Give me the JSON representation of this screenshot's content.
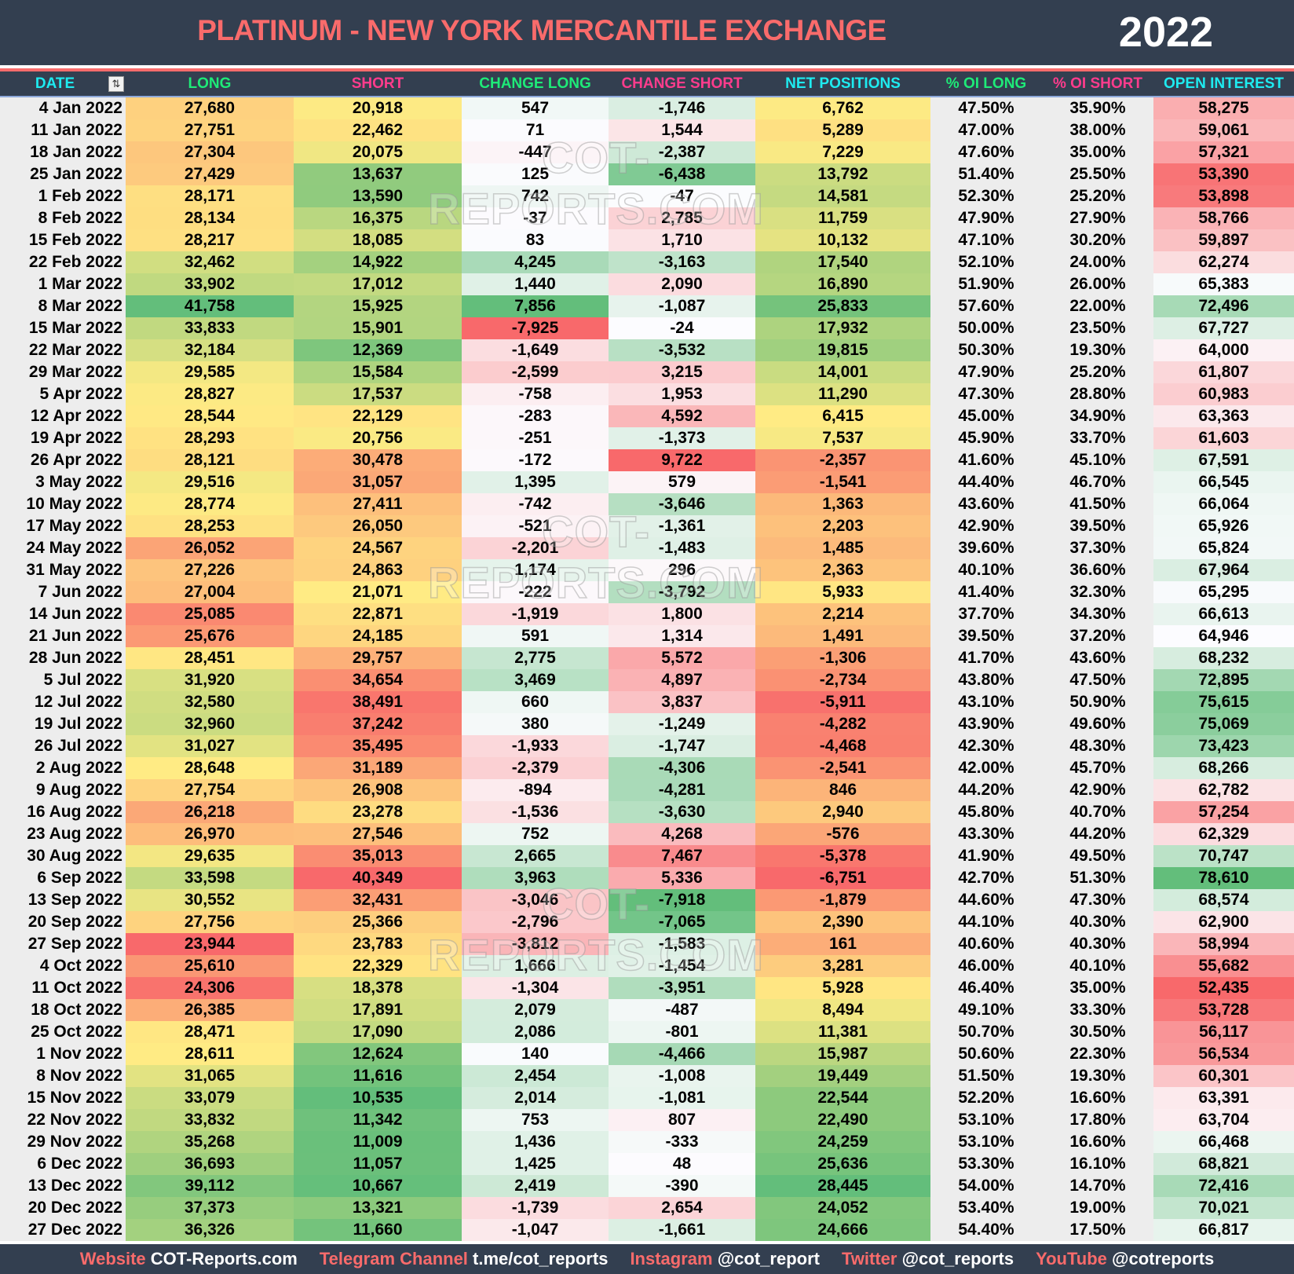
{
  "header": {
    "title": "PLATINUM - NEW YORK MERCANTILE EXCHANGE",
    "year": "2022"
  },
  "columns": [
    {
      "label": "DATE",
      "color": "#1EEBF0"
    },
    {
      "label": "LONG",
      "color": "#1EEB78"
    },
    {
      "label": "SHORT",
      "color": "#FF3C8C"
    },
    {
      "label": "CHANGE LONG",
      "color": "#1EEB78"
    },
    {
      "label": "CHANGE SHORT",
      "color": "#FF3C8C"
    },
    {
      "label": "NET POSITIONS",
      "color": "#1EEBF0"
    },
    {
      "label": "% OI LONG",
      "color": "#1EEB78"
    },
    {
      "label": "% OI SHORT",
      "color": "#FF3C8C"
    },
    {
      "label": "OPEN INTEREST",
      "color": "#1EEBF0"
    }
  ],
  "filter_icon": "filter-sort-icon",
  "scale_colors": {
    "red": "#F8696B",
    "yellow": "#FFEB84",
    "green": "#63BE7B",
    "white": "#FCFCFF"
  },
  "watermark": "COT-REPORTS.COM",
  "rows": [
    [
      "4 Jan 2022",
      "27,680",
      "20,918",
      "547",
      "-1,746",
      "6,762",
      "47.50%",
      "35.90%",
      "58,275"
    ],
    [
      "11 Jan 2022",
      "27,751",
      "22,462",
      "71",
      "1,544",
      "5,289",
      "47.00%",
      "38.00%",
      "59,061"
    ],
    [
      "18 Jan 2022",
      "27,304",
      "20,075",
      "-447",
      "-2,387",
      "7,229",
      "47.60%",
      "35.00%",
      "57,321"
    ],
    [
      "25 Jan 2022",
      "27,429",
      "13,637",
      "125",
      "-6,438",
      "13,792",
      "51.40%",
      "25.50%",
      "53,390"
    ],
    [
      "1 Feb 2022",
      "28,171",
      "13,590",
      "742",
      "-47",
      "14,581",
      "52.30%",
      "25.20%",
      "53,898"
    ],
    [
      "8 Feb 2022",
      "28,134",
      "16,375",
      "-37",
      "2,785",
      "11,759",
      "47.90%",
      "27.90%",
      "58,766"
    ],
    [
      "15 Feb 2022",
      "28,217",
      "18,085",
      "83",
      "1,710",
      "10,132",
      "47.10%",
      "30.20%",
      "59,897"
    ],
    [
      "22 Feb 2022",
      "32,462",
      "14,922",
      "4,245",
      "-3,163",
      "17,540",
      "52.10%",
      "24.00%",
      "62,274"
    ],
    [
      "1 Mar 2022",
      "33,902",
      "17,012",
      "1,440",
      "2,090",
      "16,890",
      "51.90%",
      "26.00%",
      "65,383"
    ],
    [
      "8 Mar 2022",
      "41,758",
      "15,925",
      "7,856",
      "-1,087",
      "25,833",
      "57.60%",
      "22.00%",
      "72,496"
    ],
    [
      "15 Mar 2022",
      "33,833",
      "15,901",
      "-7,925",
      "-24",
      "17,932",
      "50.00%",
      "23.50%",
      "67,727"
    ],
    [
      "22 Mar 2022",
      "32,184",
      "12,369",
      "-1,649",
      "-3,532",
      "19,815",
      "50.30%",
      "19.30%",
      "64,000"
    ],
    [
      "29 Mar 2022",
      "29,585",
      "15,584",
      "-2,599",
      "3,215",
      "14,001",
      "47.90%",
      "25.20%",
      "61,807"
    ],
    [
      "5 Apr 2022",
      "28,827",
      "17,537",
      "-758",
      "1,953",
      "11,290",
      "47.30%",
      "28.80%",
      "60,983"
    ],
    [
      "12 Apr 2022",
      "28,544",
      "22,129",
      "-283",
      "4,592",
      "6,415",
      "45.00%",
      "34.90%",
      "63,363"
    ],
    [
      "19 Apr 2022",
      "28,293",
      "20,756",
      "-251",
      "-1,373",
      "7,537",
      "45.90%",
      "33.70%",
      "61,603"
    ],
    [
      "26 Apr 2022",
      "28,121",
      "30,478",
      "-172",
      "9,722",
      "-2,357",
      "41.60%",
      "45.10%",
      "67,591"
    ],
    [
      "3 May 2022",
      "29,516",
      "31,057",
      "1,395",
      "579",
      "-1,541",
      "44.40%",
      "46.70%",
      "66,545"
    ],
    [
      "10 May 2022",
      "28,774",
      "27,411",
      "-742",
      "-3,646",
      "1,363",
      "43.60%",
      "41.50%",
      "66,064"
    ],
    [
      "17 May 2022",
      "28,253",
      "26,050",
      "-521",
      "-1,361",
      "2,203",
      "42.90%",
      "39.50%",
      "65,926"
    ],
    [
      "24 May 2022",
      "26,052",
      "24,567",
      "-2,201",
      "-1,483",
      "1,485",
      "39.60%",
      "37.30%",
      "65,824"
    ],
    [
      "31 May 2022",
      "27,226",
      "24,863",
      "1,174",
      "296",
      "2,363",
      "40.10%",
      "36.60%",
      "67,964"
    ],
    [
      "7 Jun 2022",
      "27,004",
      "21,071",
      "-222",
      "-3,792",
      "5,933",
      "41.40%",
      "32.30%",
      "65,295"
    ],
    [
      "14 Jun 2022",
      "25,085",
      "22,871",
      "-1,919",
      "1,800",
      "2,214",
      "37.70%",
      "34.30%",
      "66,613"
    ],
    [
      "21 Jun 2022",
      "25,676",
      "24,185",
      "591",
      "1,314",
      "1,491",
      "39.50%",
      "37.20%",
      "64,946"
    ],
    [
      "28 Jun 2022",
      "28,451",
      "29,757",
      "2,775",
      "5,572",
      "-1,306",
      "41.70%",
      "43.60%",
      "68,232"
    ],
    [
      "5 Jul 2022",
      "31,920",
      "34,654",
      "3,469",
      "4,897",
      "-2,734",
      "43.80%",
      "47.50%",
      "72,895"
    ],
    [
      "12 Jul 2022",
      "32,580",
      "38,491",
      "660",
      "3,837",
      "-5,911",
      "43.10%",
      "50.90%",
      "75,615"
    ],
    [
      "19 Jul 2022",
      "32,960",
      "37,242",
      "380",
      "-1,249",
      "-4,282",
      "43.90%",
      "49.60%",
      "75,069"
    ],
    [
      "26 Jul 2022",
      "31,027",
      "35,495",
      "-1,933",
      "-1,747",
      "-4,468",
      "42.30%",
      "48.30%",
      "73,423"
    ],
    [
      "2 Aug 2022",
      "28,648",
      "31,189",
      "-2,379",
      "-4,306",
      "-2,541",
      "42.00%",
      "45.70%",
      "68,266"
    ],
    [
      "9 Aug 2022",
      "27,754",
      "26,908",
      "-894",
      "-4,281",
      "846",
      "44.20%",
      "42.90%",
      "62,782"
    ],
    [
      "16 Aug 2022",
      "26,218",
      "23,278",
      "-1,536",
      "-3,630",
      "2,940",
      "45.80%",
      "40.70%",
      "57,254"
    ],
    [
      "23 Aug 2022",
      "26,970",
      "27,546",
      "752",
      "4,268",
      "-576",
      "43.30%",
      "44.20%",
      "62,329"
    ],
    [
      "30 Aug 2022",
      "29,635",
      "35,013",
      "2,665",
      "7,467",
      "-5,378",
      "41.90%",
      "49.50%",
      "70,747"
    ],
    [
      "6 Sep 2022",
      "33,598",
      "40,349",
      "3,963",
      "5,336",
      "-6,751",
      "42.70%",
      "51.30%",
      "78,610"
    ],
    [
      "13 Sep 2022",
      "30,552",
      "32,431",
      "-3,046",
      "-7,918",
      "-1,879",
      "44.60%",
      "47.30%",
      "68,574"
    ],
    [
      "20 Sep 2022",
      "27,756",
      "25,366",
      "-2,796",
      "-7,065",
      "2,390",
      "44.10%",
      "40.30%",
      "62,900"
    ],
    [
      "27 Sep 2022",
      "23,944",
      "23,783",
      "-3,812",
      "-1,583",
      "161",
      "40.60%",
      "40.30%",
      "58,994"
    ],
    [
      "4 Oct 2022",
      "25,610",
      "22,329",
      "1,666",
      "-1,454",
      "3,281",
      "46.00%",
      "40.10%",
      "55,682"
    ],
    [
      "11 Oct 2022",
      "24,306",
      "18,378",
      "-1,304",
      "-3,951",
      "5,928",
      "46.40%",
      "35.00%",
      "52,435"
    ],
    [
      "18 Oct 2022",
      "26,385",
      "17,891",
      "2,079",
      "-487",
      "8,494",
      "49.10%",
      "33.30%",
      "53,728"
    ],
    [
      "25 Oct 2022",
      "28,471",
      "17,090",
      "2,086",
      "-801",
      "11,381",
      "50.70%",
      "30.50%",
      "56,117"
    ],
    [
      "1 Nov 2022",
      "28,611",
      "12,624",
      "140",
      "-4,466",
      "15,987",
      "50.60%",
      "22.30%",
      "56,534"
    ],
    [
      "8 Nov 2022",
      "31,065",
      "11,616",
      "2,454",
      "-1,008",
      "19,449",
      "51.50%",
      "19.30%",
      "60,301"
    ],
    [
      "15 Nov 2022",
      "33,079",
      "10,535",
      "2,014",
      "-1,081",
      "22,544",
      "52.20%",
      "16.60%",
      "63,391"
    ],
    [
      "22 Nov 2022",
      "33,832",
      "11,342",
      "753",
      "807",
      "22,490",
      "53.10%",
      "17.80%",
      "63,704"
    ],
    [
      "29 Nov 2022",
      "35,268",
      "11,009",
      "1,436",
      "-333",
      "24,259",
      "53.10%",
      "16.60%",
      "66,468"
    ],
    [
      "6 Dec 2022",
      "36,693",
      "11,057",
      "1,425",
      "48",
      "25,636",
      "53.30%",
      "16.10%",
      "68,821"
    ],
    [
      "13 Dec 2022",
      "39,112",
      "10,667",
      "2,419",
      "-390",
      "28,445",
      "54.00%",
      "14.70%",
      "72,416"
    ],
    [
      "20 Dec 2022",
      "37,373",
      "13,321",
      "-1,739",
      "2,654",
      "24,052",
      "53.40%",
      "19.00%",
      "70,021"
    ],
    [
      "27 Dec 2022",
      "36,326",
      "11,660",
      "-1,047",
      "-1,661",
      "24,666",
      "54.40%",
      "17.50%",
      "66,817"
    ]
  ],
  "footer": [
    {
      "label": "Website",
      "value": "COT-Reports.com"
    },
    {
      "label": "Telegram Channel",
      "value": "t.me/cot_reports"
    },
    {
      "label": "Instagram",
      "value": "@cot_report"
    },
    {
      "label": "Twitter",
      "value": "@cot_reports"
    },
    {
      "label": "YouTube",
      "value": "@cotreports"
    }
  ]
}
